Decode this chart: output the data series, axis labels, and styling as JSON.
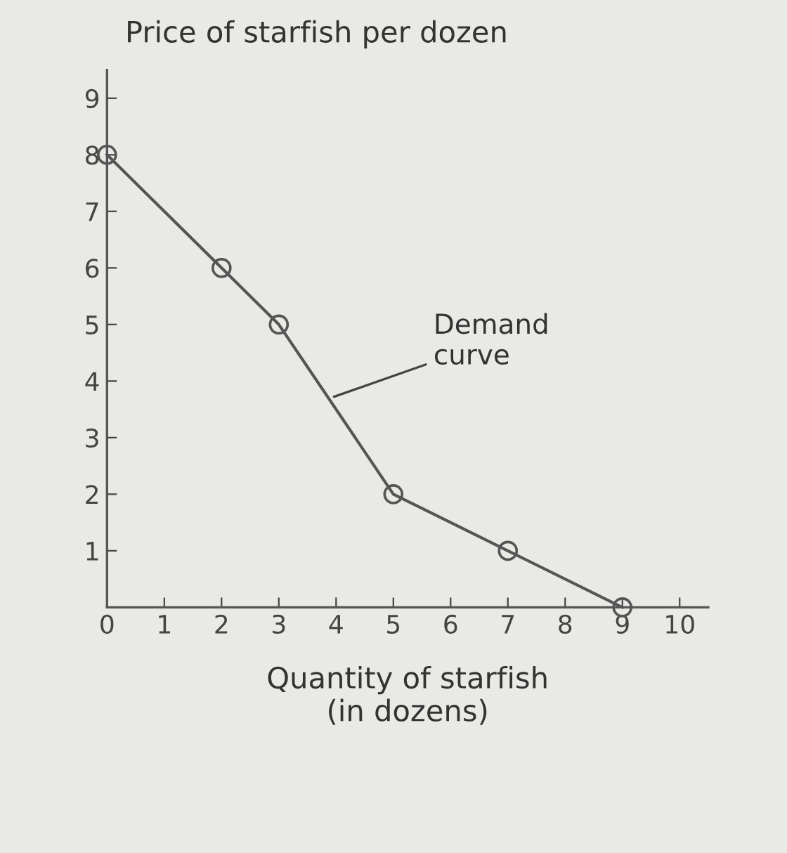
{
  "chart_data": {
    "type": "line",
    "ylabel": "Price of starfish per dozen",
    "xlabel": "Quantity of starfish\n(in dozens)",
    "x": [
      0,
      2,
      3,
      5,
      7,
      9
    ],
    "series": [
      {
        "color": "#555555",
        "values": [
          8,
          6,
          5,
          2,
          1,
          0
        ]
      }
    ],
    "marker": "circle",
    "line_style": "solid",
    "xlim": [
      0,
      10.5
    ],
    "ylim": [
      0,
      9.5
    ],
    "xticks": [
      0,
      1,
      2,
      3,
      4,
      5,
      6,
      7,
      8,
      9,
      10
    ],
    "yticks": [
      1,
      2,
      3,
      4,
      5,
      6,
      7,
      8,
      9
    ],
    "annotations": [
      {
        "text": "Demand\ncurve",
        "x": 3.9,
        "y": 3.7
      }
    ],
    "grid": false
  }
}
